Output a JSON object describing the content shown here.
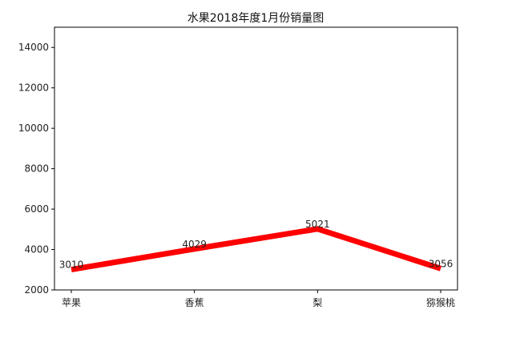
{
  "chart_data": {
    "type": "line",
    "title": "水果2018年度1月份销量图",
    "xlabel": "",
    "ylabel": "",
    "categories": [
      "苹果",
      "香蕉",
      "梨",
      "猕猴桃"
    ],
    "series": [
      {
        "values": [
          3010,
          4029,
          5021,
          3056
        ],
        "color": "#ff0000"
      }
    ],
    "data_labels": [
      "3010",
      "4029",
      "5021",
      "3056"
    ],
    "ylim": [
      2000,
      15000
    ],
    "yticks": [
      2000,
      4000,
      6000,
      8000,
      10000,
      12000,
      14000
    ],
    "ytick_labels": [
      "2000",
      "4000",
      "6000",
      "8000",
      "10000",
      "12000",
      "14000"
    ],
    "grid": false,
    "legend": "none"
  }
}
